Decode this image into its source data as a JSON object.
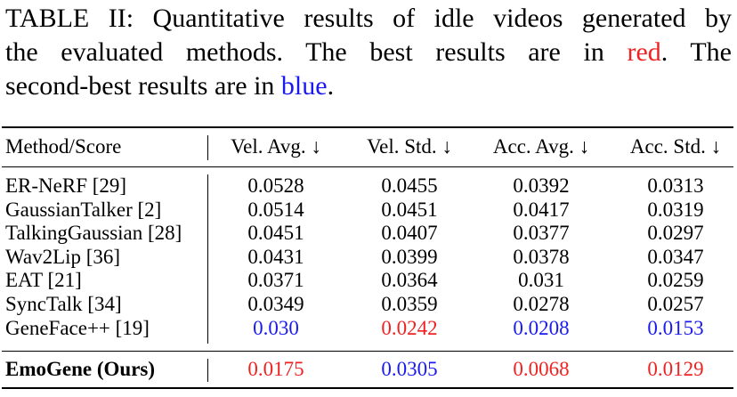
{
  "caption": {
    "line1": "TABLE II: Quantitative results of idle videos generated by",
    "line2_pre": "the evaluated methods. The best results are in ",
    "line2_red": "red",
    "line2_post": ". The",
    "line3_pre": "second-best results are in ",
    "line3_blue": "blue",
    "line3_post": "."
  },
  "colors": {
    "best": "#ee2222",
    "second": "#1a1aee",
    "text": "#000000"
  },
  "table": {
    "headers": [
      "Method/Score",
      "Vel. Avg. ↓",
      "Vel. Std. ↓",
      "Acc. Avg. ↓",
      "Acc. Std. ↓"
    ],
    "rows": [
      {
        "method": "ER-NeRF [29]",
        "values": [
          "0.0528",
          "0.0455",
          "0.0392",
          "0.0313"
        ],
        "highlight": [
          "",
          "",
          "",
          ""
        ]
      },
      {
        "method": "GaussianTalker [2]",
        "values": [
          "0.0514",
          "0.0451",
          "0.0417",
          "0.0319"
        ],
        "highlight": [
          "",
          "",
          "",
          ""
        ]
      },
      {
        "method": "TalkingGaussian [28]",
        "values": [
          "0.0451",
          "0.0407",
          "0.0377",
          "0.0297"
        ],
        "highlight": [
          "",
          "",
          "",
          ""
        ]
      },
      {
        "method": "Wav2Lip [36]",
        "values": [
          "0.0431",
          "0.0399",
          "0.0378",
          "0.0347"
        ],
        "highlight": [
          "",
          "",
          "",
          ""
        ]
      },
      {
        "method": "EAT [21]",
        "values": [
          "0.0371",
          "0.0364",
          "0.031",
          "0.0259"
        ],
        "highlight": [
          "",
          "",
          "",
          ""
        ]
      },
      {
        "method": "SyncTalk [34]",
        "values": [
          "0.0349",
          "0.0359",
          "0.0278",
          "0.0257"
        ],
        "highlight": [
          "",
          "",
          "",
          ""
        ]
      },
      {
        "method": "GeneFace++ [19]",
        "values": [
          "0.030",
          "0.0242",
          "0.0208",
          "0.0153"
        ],
        "highlight": [
          "blue",
          "red",
          "blue",
          "blue"
        ]
      }
    ],
    "ours": {
      "method": "EmoGene (Ours)",
      "values": [
        "0.0175",
        "0.0305",
        "0.0068",
        "0.0129"
      ],
      "highlight": [
        "red",
        "blue",
        "red",
        "red"
      ]
    }
  }
}
